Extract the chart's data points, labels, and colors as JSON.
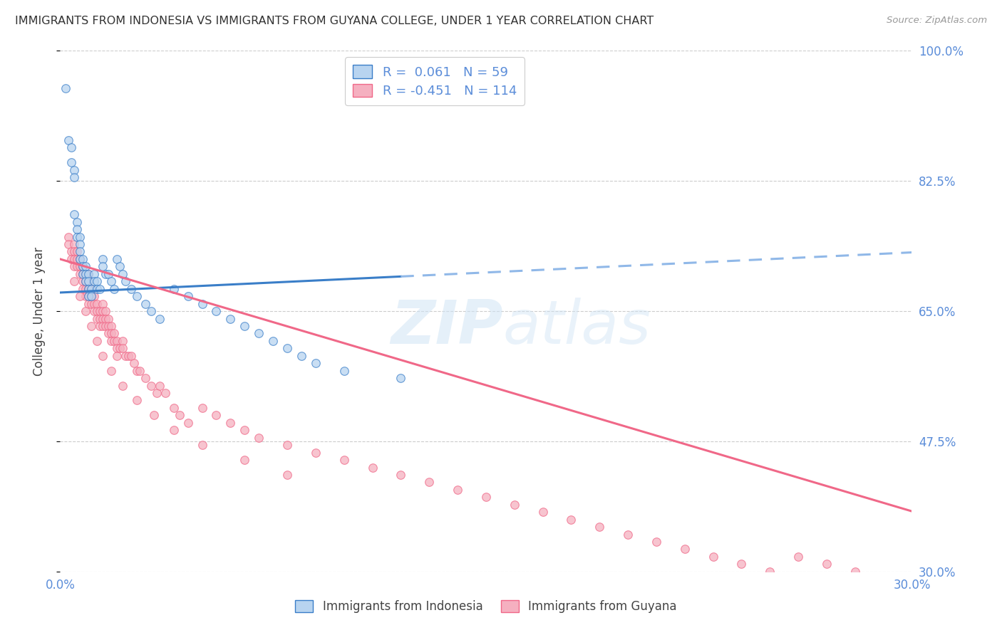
{
  "title": "IMMIGRANTS FROM INDONESIA VS IMMIGRANTS FROM GUYANA COLLEGE, UNDER 1 YEAR CORRELATION CHART",
  "source": "Source: ZipAtlas.com",
  "ylabel": "College, Under 1 year",
  "xlim": [
    0.0,
    0.3
  ],
  "ylim": [
    0.3,
    1.0
  ],
  "xticks": [
    0.0,
    0.05,
    0.1,
    0.15,
    0.2,
    0.25,
    0.3
  ],
  "xticklabels": [
    "0.0%",
    "",
    "",
    "",
    "",
    "",
    "30.0%"
  ],
  "yticks": [
    0.3,
    0.475,
    0.65,
    0.825,
    1.0
  ],
  "yticklabels_right": [
    "30.0%",
    "47.5%",
    "65.0%",
    "82.5%",
    "100.0%"
  ],
  "color_indonesia": "#b8d4f0",
  "color_guyana": "#f5b0c0",
  "color_indonesia_line": "#3a7ec8",
  "color_guyana_line": "#f06888",
  "color_text_blue": "#5b8dd9",
  "color_axis_labels": "#5b8dd9",
  "R_indonesia": 0.061,
  "N_indonesia": 59,
  "R_guyana": -0.451,
  "N_guyana": 114,
  "ind_x": [
    0.002,
    0.003,
    0.004,
    0.004,
    0.005,
    0.005,
    0.005,
    0.006,
    0.006,
    0.006,
    0.007,
    0.007,
    0.007,
    0.007,
    0.008,
    0.008,
    0.008,
    0.009,
    0.009,
    0.009,
    0.01,
    0.01,
    0.01,
    0.01,
    0.011,
    0.011,
    0.012,
    0.012,
    0.013,
    0.013,
    0.014,
    0.015,
    0.015,
    0.016,
    0.017,
    0.018,
    0.019,
    0.02,
    0.021,
    0.022,
    0.023,
    0.025,
    0.027,
    0.03,
    0.032,
    0.035,
    0.04,
    0.045,
    0.05,
    0.055,
    0.06,
    0.065,
    0.07,
    0.075,
    0.08,
    0.085,
    0.09,
    0.1,
    0.12
  ],
  "ind_y": [
    0.95,
    0.88,
    0.87,
    0.85,
    0.84,
    0.83,
    0.78,
    0.77,
    0.76,
    0.75,
    0.75,
    0.74,
    0.73,
    0.72,
    0.72,
    0.71,
    0.7,
    0.71,
    0.7,
    0.69,
    0.7,
    0.69,
    0.68,
    0.67,
    0.68,
    0.67,
    0.7,
    0.69,
    0.69,
    0.68,
    0.68,
    0.72,
    0.71,
    0.7,
    0.7,
    0.69,
    0.68,
    0.72,
    0.71,
    0.7,
    0.69,
    0.68,
    0.67,
    0.66,
    0.65,
    0.64,
    0.68,
    0.67,
    0.66,
    0.65,
    0.64,
    0.63,
    0.62,
    0.61,
    0.6,
    0.59,
    0.58,
    0.57,
    0.56
  ],
  "guy_x": [
    0.003,
    0.003,
    0.004,
    0.004,
    0.005,
    0.005,
    0.005,
    0.005,
    0.006,
    0.006,
    0.006,
    0.007,
    0.007,
    0.007,
    0.008,
    0.008,
    0.008,
    0.008,
    0.009,
    0.009,
    0.009,
    0.009,
    0.01,
    0.01,
    0.01,
    0.01,
    0.01,
    0.011,
    0.011,
    0.011,
    0.012,
    0.012,
    0.012,
    0.013,
    0.013,
    0.013,
    0.014,
    0.014,
    0.014,
    0.015,
    0.015,
    0.015,
    0.015,
    0.016,
    0.016,
    0.016,
    0.017,
    0.017,
    0.017,
    0.018,
    0.018,
    0.018,
    0.019,
    0.019,
    0.02,
    0.02,
    0.02,
    0.021,
    0.022,
    0.022,
    0.023,
    0.024,
    0.025,
    0.026,
    0.027,
    0.028,
    0.03,
    0.032,
    0.034,
    0.035,
    0.037,
    0.04,
    0.042,
    0.045,
    0.05,
    0.055,
    0.06,
    0.065,
    0.07,
    0.08,
    0.09,
    0.1,
    0.11,
    0.12,
    0.13,
    0.14,
    0.15,
    0.16,
    0.17,
    0.18,
    0.19,
    0.2,
    0.21,
    0.22,
    0.23,
    0.24,
    0.25,
    0.26,
    0.27,
    0.28,
    0.005,
    0.007,
    0.009,
    0.011,
    0.013,
    0.015,
    0.018,
    0.022,
    0.027,
    0.033,
    0.04,
    0.05,
    0.065,
    0.08
  ],
  "guy_y": [
    0.75,
    0.74,
    0.73,
    0.72,
    0.74,
    0.73,
    0.72,
    0.71,
    0.73,
    0.72,
    0.71,
    0.72,
    0.71,
    0.7,
    0.71,
    0.7,
    0.69,
    0.68,
    0.7,
    0.69,
    0.68,
    0.67,
    0.7,
    0.69,
    0.68,
    0.67,
    0.66,
    0.68,
    0.67,
    0.66,
    0.67,
    0.66,
    0.65,
    0.66,
    0.65,
    0.64,
    0.65,
    0.64,
    0.63,
    0.66,
    0.65,
    0.64,
    0.63,
    0.65,
    0.64,
    0.63,
    0.64,
    0.63,
    0.62,
    0.63,
    0.62,
    0.61,
    0.62,
    0.61,
    0.61,
    0.6,
    0.59,
    0.6,
    0.61,
    0.6,
    0.59,
    0.59,
    0.59,
    0.58,
    0.57,
    0.57,
    0.56,
    0.55,
    0.54,
    0.55,
    0.54,
    0.52,
    0.51,
    0.5,
    0.52,
    0.51,
    0.5,
    0.49,
    0.48,
    0.47,
    0.46,
    0.45,
    0.44,
    0.43,
    0.42,
    0.41,
    0.4,
    0.39,
    0.38,
    0.37,
    0.36,
    0.35,
    0.34,
    0.33,
    0.32,
    0.31,
    0.3,
    0.32,
    0.31,
    0.3,
    0.69,
    0.67,
    0.65,
    0.63,
    0.61,
    0.59,
    0.57,
    0.55,
    0.53,
    0.51,
    0.49,
    0.47,
    0.45,
    0.43
  ],
  "watermark_zip": "ZIP",
  "watermark_atlas": "atlas",
  "background_color": "#ffffff",
  "grid_color": "#cccccc"
}
